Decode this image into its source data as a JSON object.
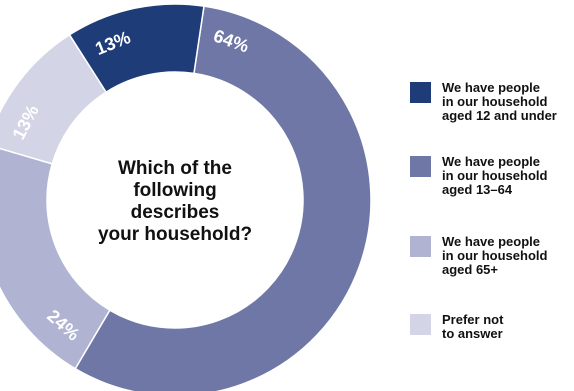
{
  "chart_data": {
    "type": "pie",
    "title_lines": [
      "Which of the",
      "following describes",
      "your household?"
    ],
    "segments": [
      {
        "label_lines": [
          "We have people",
          "in our household",
          "aged 12 and under"
        ],
        "value": 13,
        "display": "13%",
        "color": "#1e3c78"
      },
      {
        "label_lines": [
          "We have people",
          "in  our household",
          "aged 13–64"
        ],
        "value": 64,
        "display": "64%",
        "color": "#6e77a5"
      },
      {
        "label_lines": [
          "We have people",
          "in our household",
          "aged 65+"
        ],
        "value": 24,
        "display": "24%",
        "color": "#b0b4d2"
      },
      {
        "label_lines": [
          "Prefer not",
          "to answer"
        ],
        "value": 13,
        "display": "13%",
        "color": "#d3d5e6"
      }
    ],
    "legend_position": "right"
  }
}
